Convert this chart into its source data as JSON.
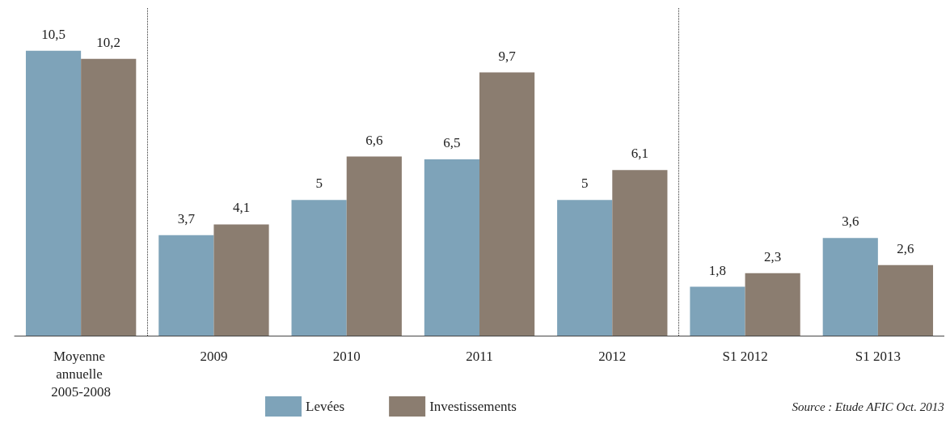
{
  "chart_data": {
    "type": "bar",
    "categories": [
      "Moyenne annuelle 2005-2008",
      "2009",
      "2010",
      "2011",
      "2012",
      "S1 2012",
      "S1 2013"
    ],
    "series": [
      {
        "name": "Levées",
        "color": "#7ea3b9",
        "values": [
          10.5,
          3.7,
          5,
          6.5,
          5,
          1.8,
          3.6
        ],
        "value_labels": [
          "10,5",
          "3,7",
          "5",
          "6,5",
          "5",
          "1,8",
          "3,6"
        ]
      },
      {
        "name": "Investissements",
        "color": "#8b7d70",
        "values": [
          10.2,
          4.1,
          6.6,
          9.7,
          6.1,
          2.3,
          2.6
        ],
        "value_labels": [
          "10,2",
          "4,1",
          "6,6",
          "9,7",
          "6,1",
          "2,3",
          "2,6"
        ]
      }
    ],
    "legend": "bottom",
    "annotations": [
      "Source : Etude AFIC Oct. 2013"
    ]
  }
}
